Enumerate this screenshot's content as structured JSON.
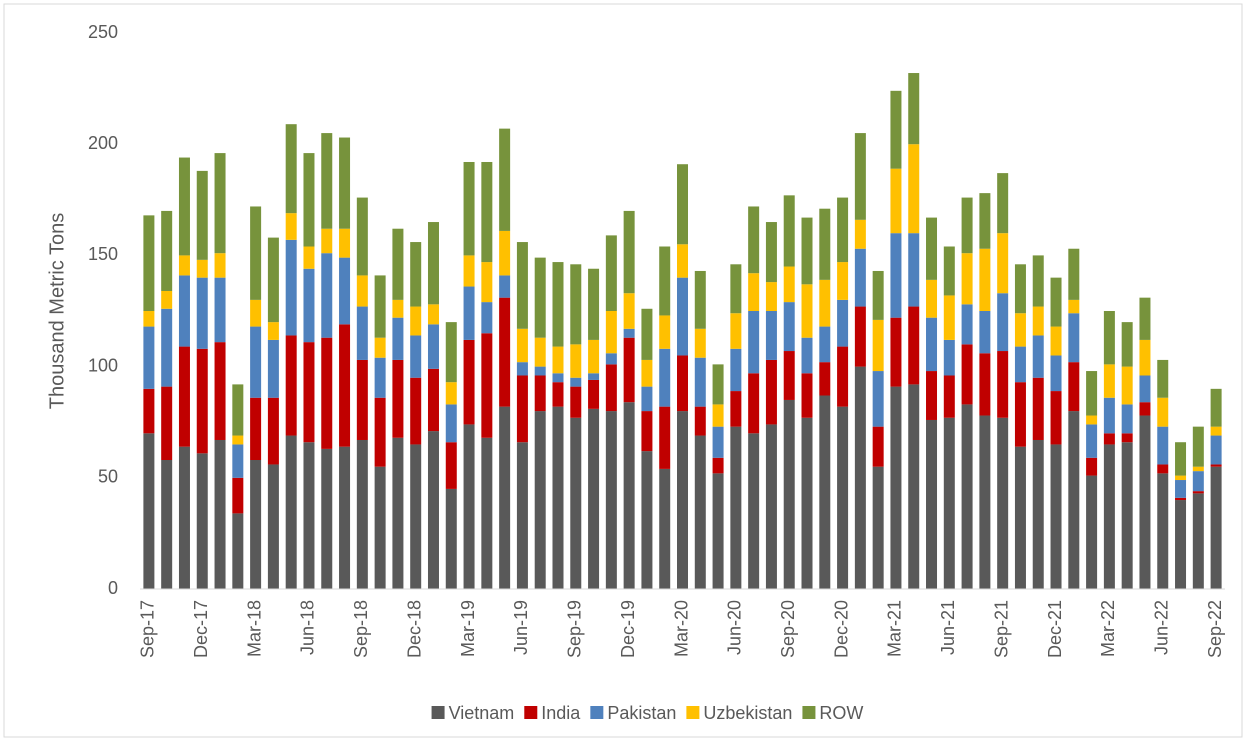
{
  "chart_data": {
    "type": "stacked_bar",
    "y_label": "Thousand Metric Tons",
    "categories": [
      "Sep-17",
      null,
      null,
      "Dec-17",
      null,
      null,
      "Mar-18",
      null,
      null,
      "Jun-18",
      null,
      null,
      "Sep-18",
      null,
      null,
      "Dec-18",
      null,
      null,
      "Mar-19",
      null,
      null,
      "Jun-19",
      null,
      null,
      "Sep-19",
      null,
      null,
      "Dec-19",
      null,
      null,
      "Mar-20",
      null,
      null,
      "Jun-20",
      null,
      null,
      "Sep-20",
      null,
      null,
      "Dec-20",
      null,
      null,
      "Mar-21",
      null,
      null,
      "Jun-21",
      null,
      null,
      "Sep-21",
      null,
      null,
      "Dec-21",
      null,
      null,
      "Mar-22",
      null,
      null,
      "Jun-22",
      null,
      null,
      "Sep-22"
    ],
    "series": [
      {
        "name": "Vietnam",
        "color": "#595959",
        "values": [
          70,
          58,
          64,
          61,
          67,
          34,
          58,
          56,
          69,
          66,
          63,
          64,
          67,
          55,
          68,
          65,
          71,
          45,
          74,
          68,
          82,
          66,
          80,
          82,
          77,
          81,
          80,
          84,
          62,
          54,
          80,
          69,
          52,
          73,
          70,
          74,
          85,
          77,
          87,
          82,
          100,
          55,
          91,
          92,
          76,
          77,
          83,
          78,
          77,
          64,
          67,
          65,
          80,
          51,
          65,
          66,
          78,
          52,
          40,
          43,
          55
        ]
      },
      {
        "name": "India",
        "color": "#c00000",
        "values": [
          20,
          33,
          45,
          47,
          44,
          16,
          28,
          30,
          45,
          45,
          50,
          55,
          36,
          31,
          35,
          30,
          28,
          21,
          38,
          47,
          49,
          30,
          16,
          11,
          14,
          13,
          21,
          29,
          18,
          28,
          25,
          13,
          7,
          16,
          27,
          29,
          22,
          20,
          15,
          27,
          27,
          18,
          31,
          35,
          22,
          19,
          27,
          28,
          30,
          29,
          28,
          24,
          22,
          8,
          5,
          4,
          6,
          4,
          1,
          1,
          1
        ]
      },
      {
        "name": "Pakistan",
        "color": "#4f81bd",
        "values": [
          28,
          35,
          32,
          32,
          29,
          15,
          32,
          26,
          43,
          33,
          38,
          30,
          24,
          18,
          19,
          19,
          20,
          17,
          24,
          14,
          10,
          6,
          4,
          4,
          4,
          3,
          5,
          4,
          11,
          26,
          35,
          22,
          14,
          19,
          28,
          22,
          22,
          16,
          16,
          21,
          26,
          25,
          38,
          33,
          24,
          16,
          18,
          19,
          26,
          16,
          19,
          16,
          22,
          15,
          16,
          13,
          12,
          17,
          8,
          9,
          13
        ]
      },
      {
        "name": "Uzbekistan",
        "color": "#ffc000",
        "values": [
          7,
          8,
          9,
          8,
          11,
          4,
          12,
          8,
          12,
          10,
          11,
          13,
          14,
          9,
          8,
          13,
          9,
          10,
          14,
          18,
          20,
          15,
          13,
          12,
          15,
          15,
          19,
          16,
          12,
          15,
          15,
          13,
          10,
          16,
          17,
          13,
          16,
          24,
          21,
          17,
          13,
          23,
          29,
          40,
          17,
          20,
          23,
          28,
          27,
          15,
          13,
          13,
          6,
          4,
          15,
          17,
          16,
          13,
          2,
          2,
          4
        ]
      },
      {
        "name": "ROW",
        "color": "#77933c",
        "values": [
          43,
          36,
          44,
          40,
          45,
          23,
          42,
          38,
          40,
          42,
          43,
          41,
          35,
          28,
          32,
          29,
          37,
          27,
          42,
          45,
          46,
          39,
          36,
          38,
          36,
          32,
          34,
          37,
          23,
          31,
          36,
          26,
          18,
          22,
          30,
          27,
          32,
          30,
          32,
          29,
          39,
          22,
          35,
          32,
          28,
          22,
          25,
          25,
          27,
          22,
          23,
          22,
          23,
          20,
          24,
          20,
          19,
          17,
          15,
          18,
          17
        ]
      }
    ],
    "ylim": [
      0,
      250
    ],
    "yticks": [
      0,
      50,
      100,
      150,
      200,
      250
    ],
    "grid": false,
    "legend": "bottom"
  }
}
